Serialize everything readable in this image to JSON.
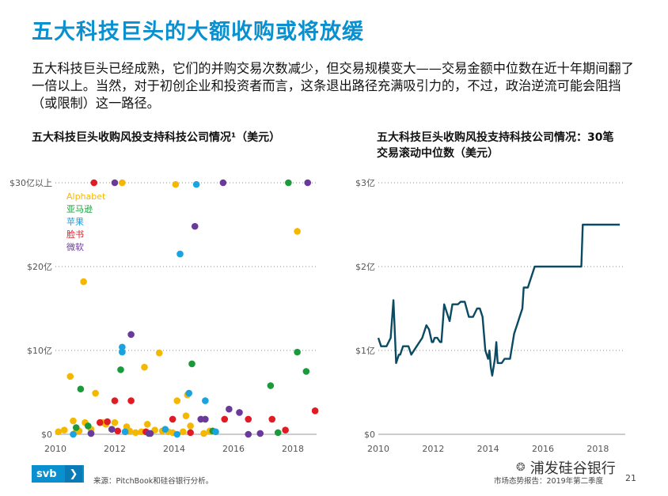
{
  "page": {
    "title": "五大科技巨头的大额收购或将放缓",
    "intro": "五大科技巨头已经成熟，它们的并购交易次数减少，但交易规模变大——交易金额中位数在近十年期间翻了一倍以上。当然，对于初创企业和投资者而言，这条退出路径充满吸引力的，不过，政治逆流可能会阻挡（或限制）这一路径。",
    "source": "来源：PitchBook和硅谷银行分析。",
    "report": "市场态势报告：2019年第二季度",
    "page_number": "21",
    "logo_text": "svb",
    "logo_chevron": "❯",
    "wechat_text": "浦发硅谷银行",
    "wechat_icon": "❂"
  },
  "colors": {
    "Alphabet": "#f5b800",
    "亚马逊": "#1a9a3a",
    "苹果": "#19a3e0",
    "脸书": "#e01b24",
    "微软": "#6a3a9a",
    "line": "#0b4a63",
    "title": "#0a90cf"
  },
  "chart_data": [
    {
      "type": "scatter",
      "title": "五大科技巨头收购风投支持科技公司情况¹（美元）",
      "xlabel": "",
      "ylabel": "",
      "xlim": [
        2010,
        2018.8
      ],
      "ylim": [
        0,
        30
      ],
      "x_ticks": [
        2010,
        2012,
        2014,
        2016,
        2018
      ],
      "x_tick_labels": [
        "2010",
        "2012",
        "2014",
        "2016",
        "2018"
      ],
      "y_ticks": [
        0,
        10,
        20,
        30
      ],
      "y_tick_labels": [
        "$0",
        "$10亿",
        "$20亿",
        "$30亿以上"
      ],
      "legend": [
        "Alphabet",
        "亚马逊",
        "苹果",
        "脸书",
        "微软"
      ],
      "legend_position": "top-left",
      "series": [
        {
          "name": "Alphabet",
          "points": [
            [
              2010.1,
              0.3
            ],
            [
              2010.3,
              0.5
            ],
            [
              2010.5,
              6.9
            ],
            [
              2010.6,
              1.6
            ],
            [
              2010.7,
              0.3
            ],
            [
              2010.8,
              0.4
            ],
            [
              2010.95,
              18.2
            ],
            [
              2011.0,
              1.4
            ],
            [
              2011.2,
              0.6
            ],
            [
              2011.35,
              4.9
            ],
            [
              2011.6,
              1.4
            ],
            [
              2011.7,
              1.2
            ],
            [
              2011.9,
              0.6
            ],
            [
              2012.0,
              1.4
            ],
            [
              2012.25,
              30
            ],
            [
              2012.4,
              0.9
            ],
            [
              2012.5,
              0.4
            ],
            [
              2012.7,
              0.2
            ],
            [
              2012.9,
              0.3
            ],
            [
              2013.0,
              8.0
            ],
            [
              2013.1,
              1.2
            ],
            [
              2013.35,
              0.5
            ],
            [
              2013.5,
              9.7
            ],
            [
              2013.6,
              0.4
            ],
            [
              2013.8,
              0.3
            ],
            [
              2013.95,
              0.2
            ],
            [
              2014.05,
              29.8
            ],
            [
              2014.1,
              4.0
            ],
            [
              2014.3,
              0.3
            ],
            [
              2014.4,
              2.2
            ],
            [
              2014.45,
              4.7
            ],
            [
              2014.55,
              1.0
            ],
            [
              2015.0,
              0.1
            ],
            [
              2015.2,
              0.4
            ],
            [
              2018.15,
              24.2
            ]
          ]
        },
        {
          "name": "亚马逊",
          "points": [
            [
              2010.7,
              0.8
            ],
            [
              2010.85,
              5.4
            ],
            [
              2011.1,
              1.0
            ],
            [
              2012.2,
              7.7
            ],
            [
              2014.6,
              8.4
            ],
            [
              2015.3,
              0.4
            ],
            [
              2017.25,
              5.8
            ],
            [
              2017.5,
              0.2
            ],
            [
              2017.85,
              30
            ],
            [
              2018.15,
              9.8
            ],
            [
              2018.45,
              7.5
            ]
          ]
        },
        {
          "name": "苹果",
          "points": [
            [
              2010.6,
              0.0
            ],
            [
              2011.2,
              0.1
            ],
            [
              2012.25,
              10.4
            ],
            [
              2012.25,
              9.8
            ],
            [
              2012.35,
              0.3
            ],
            [
              2013.7,
              0.6
            ],
            [
              2014.1,
              0.0
            ],
            [
              2014.2,
              21.5
            ],
            [
              2014.5,
              4.9
            ],
            [
              2014.75,
              29.8
            ],
            [
              2015.05,
              4.0
            ],
            [
              2015.4,
              0.3
            ]
          ]
        },
        {
          "name": "脸书",
          "points": [
            [
              2011.3,
              30
            ],
            [
              2011.5,
              1.4
            ],
            [
              2011.75,
              1.5
            ],
            [
              2012.0,
              4.0
            ],
            [
              2012.1,
              0.4
            ],
            [
              2012.55,
              4.0
            ],
            [
              2013.05,
              0.3
            ],
            [
              2013.95,
              1.8
            ],
            [
              2014.55,
              0.2
            ],
            [
              2015.7,
              1.8
            ],
            [
              2016.5,
              1.8
            ],
            [
              2017.3,
              1.8
            ],
            [
              2017.75,
              0.5
            ],
            [
              2018.75,
              2.8
            ]
          ]
        },
        {
          "name": "微软",
          "points": [
            [
              2011.2,
              0.1
            ],
            [
              2011.9,
              0.6
            ],
            [
              2012.0,
              30
            ],
            [
              2012.55,
              11.9
            ],
            [
              2013.15,
              0.1
            ],
            [
              2013.2,
              0.1
            ],
            [
              2014.7,
              24.8
            ],
            [
              2014.9,
              1.8
            ],
            [
              2015.05,
              1.8
            ],
            [
              2015.65,
              30
            ],
            [
              2015.85,
              3.0
            ],
            [
              2016.2,
              2.6
            ],
            [
              2016.5,
              0.0
            ],
            [
              2016.9,
              0.1
            ],
            [
              2018.5,
              30
            ]
          ]
        }
      ]
    },
    {
      "type": "line",
      "title": "五大科技巨头收购风投支持科技公司情况：30笔交易滚动中位数（美元）",
      "xlabel": "",
      "ylabel": "",
      "xlim": [
        2010,
        2019
      ],
      "ylim": [
        0,
        3
      ],
      "x_ticks": [
        2010,
        2012,
        2014,
        2016,
        2018
      ],
      "x_tick_labels": [
        "2010",
        "2012",
        "2014",
        "2016",
        "2018"
      ],
      "y_ticks": [
        0,
        1,
        2,
        3
      ],
      "y_tick_labels": [
        "$0",
        "$1亿",
        "$2亿",
        "$3亿"
      ],
      "series": [
        {
          "name": "滚动中位数",
          "x": [
            2010.0,
            2010.1,
            2010.2,
            2010.3,
            2010.45,
            2010.55,
            2010.65,
            2010.75,
            2010.8,
            2010.9,
            2011.0,
            2011.1,
            2011.2,
            2011.4,
            2011.5,
            2011.6,
            2011.75,
            2011.85,
            2011.95,
            2012.0,
            2012.05,
            2012.15,
            2012.25,
            2012.3,
            2012.4,
            2012.55,
            2012.6,
            2012.7,
            2012.8,
            2012.9,
            2013.0,
            2013.15,
            2013.3,
            2013.45,
            2013.6,
            2013.7,
            2013.8,
            2013.9,
            2014.0,
            2014.05,
            2014.1,
            2014.15,
            2014.25,
            2014.3,
            2014.35,
            2014.4,
            2014.5,
            2014.6,
            2014.7,
            2014.8,
            2014.95,
            2015.05,
            2015.15,
            2015.25,
            2015.3,
            2015.35,
            2015.45,
            2015.6,
            2015.7,
            2015.85,
            2016.0,
            2016.3,
            2016.6,
            2016.9,
            2017.2,
            2017.4,
            2017.45,
            2018.8
          ],
          "values": [
            1.15,
            1.05,
            1.05,
            1.05,
            1.15,
            1.6,
            0.85,
            0.95,
            0.95,
            1.05,
            1.05,
            1.05,
            0.95,
            1.05,
            1.1,
            1.15,
            1.3,
            1.25,
            1.1,
            1.1,
            1.15,
            1.15,
            1.1,
            1.1,
            1.55,
            1.4,
            1.35,
            1.55,
            1.55,
            1.55,
            1.58,
            1.58,
            1.4,
            1.4,
            1.5,
            1.5,
            1.4,
            1.0,
            0.9,
            1.0,
            0.8,
            0.7,
            0.9,
            1.1,
            0.85,
            0.85,
            0.85,
            0.9,
            0.9,
            0.9,
            1.2,
            1.3,
            1.4,
            1.5,
            1.75,
            1.75,
            1.75,
            1.9,
            2.0,
            2.0,
            2.0,
            2.0,
            2.0,
            2.0,
            2.0,
            2.0,
            2.5,
            2.5
          ]
        }
      ]
    }
  ]
}
